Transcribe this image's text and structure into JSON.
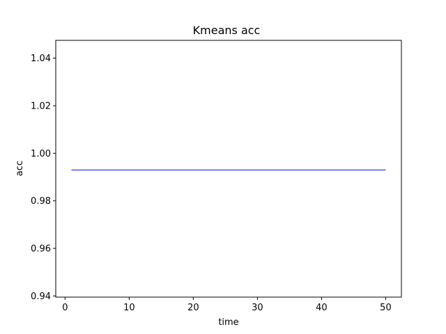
{
  "chart_data": {
    "type": "line",
    "title": "Kmeans acc",
    "xlabel": "time",
    "ylabel": "acc",
    "xlim": [
      -1.45,
      52.45
    ],
    "ylim": [
      0.9395,
      1.0475
    ],
    "xticks": [
      0,
      10,
      20,
      30,
      40,
      50
    ],
    "yticks": [
      0.94,
      0.96,
      0.98,
      1.0,
      1.02,
      1.04
    ],
    "xtick_labels": [
      "0",
      "10",
      "20",
      "30",
      "40",
      "50"
    ],
    "ytick_labels": [
      "0.94",
      "0.96",
      "0.98",
      "1.00",
      "1.02",
      "1.04"
    ],
    "grid": false,
    "legend": "none",
    "series": [
      {
        "color": "#0000ff",
        "x": [
          1,
          50
        ],
        "y": [
          0.993,
          0.993
        ]
      }
    ]
  }
}
